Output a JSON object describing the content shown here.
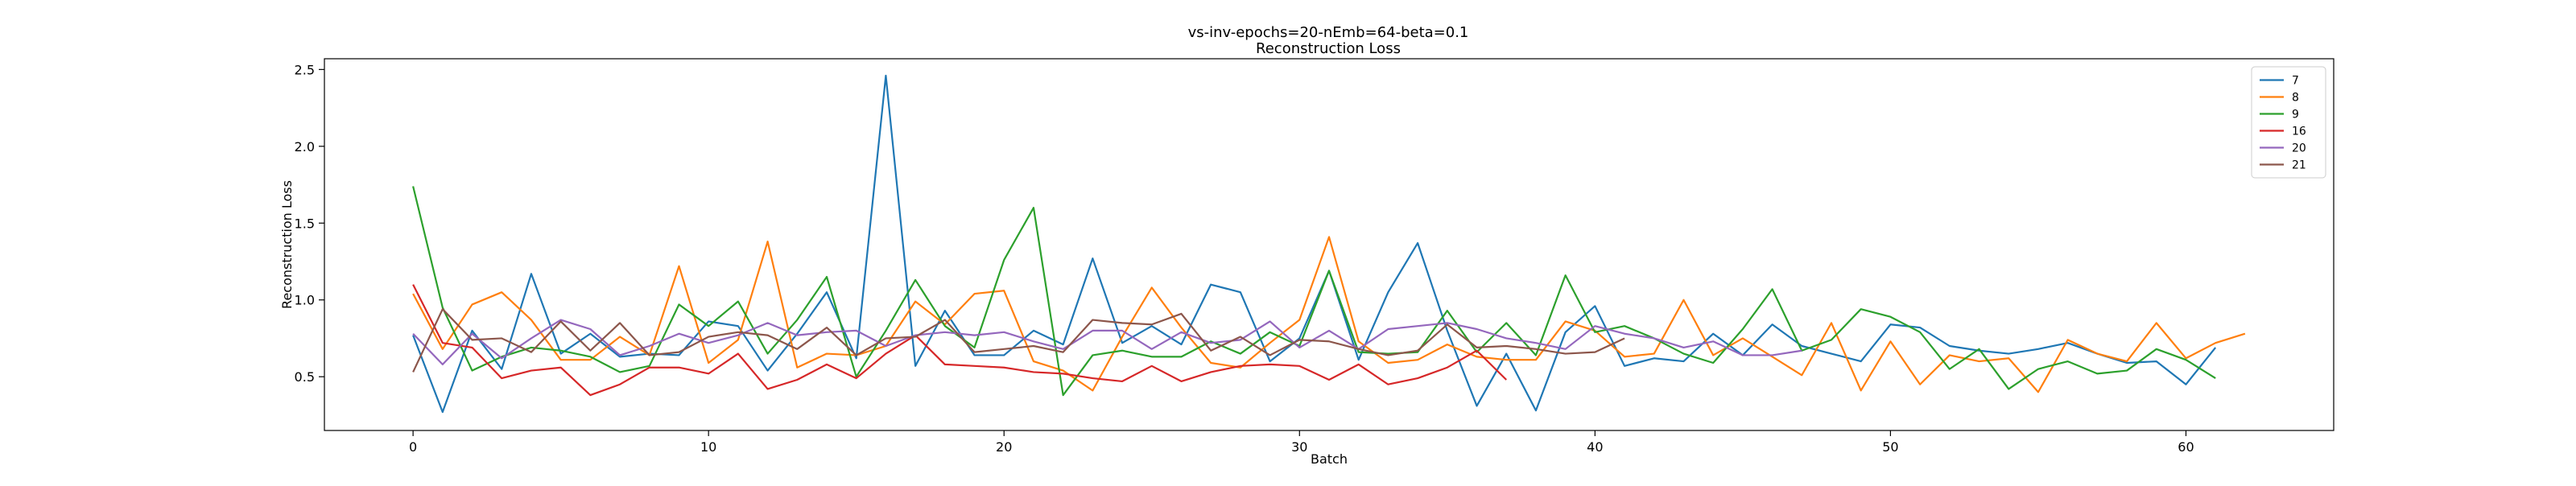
{
  "chart_data": {
    "type": "line",
    "title": "vs-inv-epochs=20-nEmb=64-beta=0.1",
    "subtitle": "Reconstruction Loss",
    "xlabel": "Batch",
    "ylabel": "Reconstruction Loss",
    "xlim": [
      -3,
      65
    ],
    "ylim": [
      0.15,
      2.57
    ],
    "xticks": [
      "0",
      "10",
      "20",
      "30",
      "40",
      "50",
      "60"
    ],
    "yticks": [
      "0.5",
      "1.0",
      "1.5",
      "2.0",
      "2.5"
    ],
    "grid": false,
    "legend_position": "top-right",
    "series": [
      {
        "name": "7",
        "color": "#1f77b4",
        "values": [
          0.77,
          0.27,
          0.8,
          0.55,
          1.17,
          0.65,
          0.78,
          0.63,
          0.65,
          0.64,
          0.86,
          0.83,
          0.54,
          0.78,
          1.05,
          0.62,
          2.46,
          0.57,
          0.93,
          0.64,
          0.64,
          0.8,
          0.71,
          1.27,
          0.72,
          0.83,
          0.71,
          1.1,
          1.05,
          0.6,
          0.75,
          1.19,
          0.61,
          1.05,
          1.37,
          0.8,
          0.31,
          0.65,
          0.28,
          0.79,
          0.96,
          0.57,
          0.62,
          0.6,
          0.78,
          0.64,
          0.84,
          0.7,
          0.65,
          0.6,
          0.84,
          0.82,
          0.7,
          0.67,
          0.65,
          0.68,
          0.72,
          0.65,
          0.59,
          0.6,
          0.45,
          0.69
        ]
      },
      {
        "name": "8",
        "color": "#ff7f0e",
        "values": [
          1.04,
          0.68,
          0.97,
          1.05,
          0.87,
          0.61,
          0.61,
          0.76,
          0.64,
          1.22,
          0.59,
          0.74,
          1.38,
          0.56,
          0.65,
          0.64,
          0.7,
          0.99,
          0.84,
          1.04,
          1.06,
          0.6,
          0.54,
          0.41,
          0.76,
          1.08,
          0.82,
          0.59,
          0.56,
          0.72,
          0.87,
          1.41,
          0.73,
          0.59,
          0.61,
          0.71,
          0.63,
          0.61,
          0.61,
          0.86,
          0.8,
          0.63,
          0.65,
          1.0,
          0.64,
          0.75,
          0.63,
          0.51,
          0.85,
          0.41,
          0.73,
          0.45,
          0.64,
          0.6,
          0.62,
          0.4,
          0.74,
          0.65,
          0.6,
          0.85,
          0.62,
          0.72,
          0.78
        ]
      },
      {
        "name": "9",
        "color": "#2ca02c",
        "values": [
          1.74,
          0.95,
          0.54,
          0.63,
          0.69,
          0.67,
          0.63,
          0.53,
          0.57,
          0.97,
          0.83,
          0.99,
          0.65,
          0.87,
          1.15,
          0.5,
          0.8,
          1.13,
          0.83,
          0.69,
          1.26,
          1.6,
          0.38,
          0.64,
          0.67,
          0.63,
          0.63,
          0.73,
          0.65,
          0.79,
          0.7,
          1.19,
          0.66,
          0.65,
          0.66,
          0.93,
          0.66,
          0.85,
          0.64,
          1.16,
          0.79,
          0.83,
          0.75,
          0.65,
          0.59,
          0.81,
          1.07,
          0.67,
          0.74,
          0.94,
          0.89,
          0.79,
          0.55,
          0.68,
          0.42,
          0.55,
          0.6,
          0.52,
          0.54,
          0.68,
          0.61,
          0.49
        ]
      },
      {
        "name": "16",
        "color": "#d62728",
        "values": [
          1.1,
          0.72,
          0.69,
          0.49,
          0.54,
          0.56,
          0.38,
          0.45,
          0.56,
          0.56,
          0.52,
          0.65,
          0.42,
          0.48,
          0.58,
          0.49,
          0.65,
          0.77,
          0.58,
          0.57,
          0.56,
          0.53,
          0.52,
          0.49,
          0.47,
          0.57,
          0.47,
          0.53,
          0.57,
          0.58,
          0.57,
          0.48,
          0.58,
          0.45,
          0.49,
          0.56,
          0.67,
          0.48
        ]
      },
      {
        "name": "20",
        "color": "#9467bd",
        "values": [
          0.78,
          0.58,
          0.78,
          0.62,
          0.75,
          0.87,
          0.81,
          0.64,
          0.7,
          0.78,
          0.72,
          0.77,
          0.85,
          0.77,
          0.79,
          0.8,
          0.7,
          0.77,
          0.79,
          0.77,
          0.79,
          0.73,
          0.68,
          0.8,
          0.8,
          0.68,
          0.79,
          0.72,
          0.74,
          0.86,
          0.69,
          0.8,
          0.68,
          0.81,
          0.83,
          0.85,
          0.81,
          0.75,
          0.72,
          0.68,
          0.83,
          0.78,
          0.75,
          0.69,
          0.73,
          0.64,
          0.64,
          0.67
        ]
      },
      {
        "name": "21",
        "color": "#8c564b",
        "values": [
          0.53,
          0.94,
          0.74,
          0.75,
          0.66,
          0.86,
          0.67,
          0.85,
          0.64,
          0.66,
          0.76,
          0.79,
          0.77,
          0.68,
          0.82,
          0.64,
          0.75,
          0.76,
          0.87,
          0.66,
          0.68,
          0.7,
          0.66,
          0.87,
          0.85,
          0.84,
          0.91,
          0.67,
          0.76,
          0.64,
          0.74,
          0.73,
          0.68,
          0.64,
          0.67,
          0.84,
          0.69,
          0.7,
          0.68,
          0.65,
          0.66,
          0.75
        ]
      }
    ]
  }
}
